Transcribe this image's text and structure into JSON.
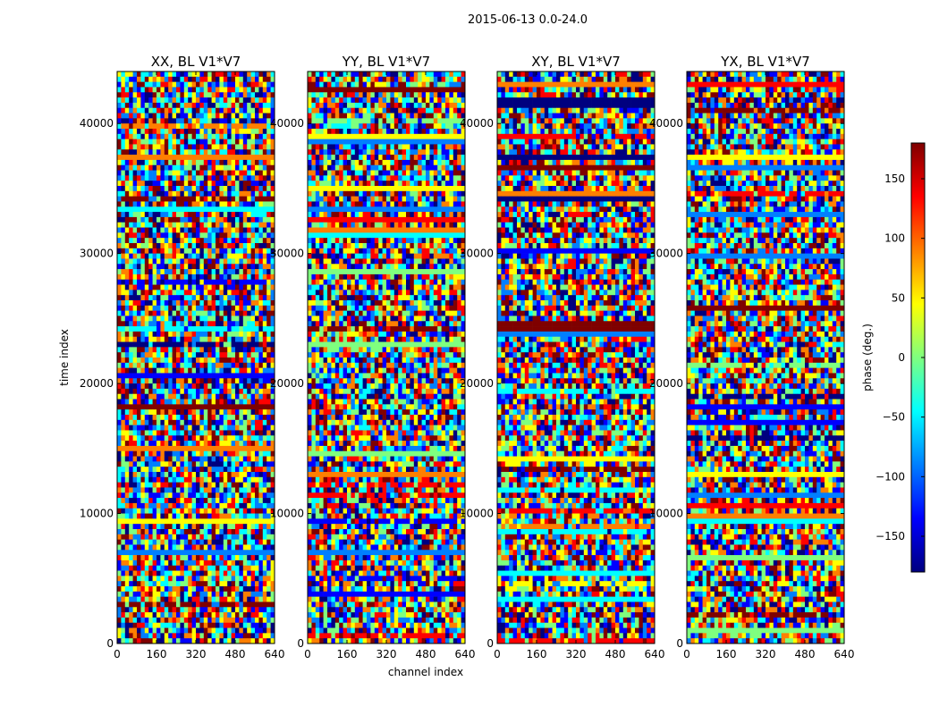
{
  "figure": {
    "suptitle": "2015-06-13 0.0-24.0",
    "xlabel": "channel index",
    "ylabel": "time index"
  },
  "chart_data": {
    "type": "heatmap",
    "colormap": "jet",
    "x_range": [
      0,
      640
    ],
    "y_range": [
      0,
      44000
    ],
    "x_ticks": [
      0,
      160,
      320,
      480,
      640
    ],
    "x_tick_labels": [
      "0",
      "160",
      "320",
      "480",
      "640"
    ],
    "y_ticks": [
      0,
      10000,
      20000,
      30000,
      40000
    ],
    "y_tick_labels": [
      "0",
      "10000",
      "20000",
      "30000",
      "40000"
    ],
    "panels": [
      {
        "id": "xx",
        "title": "XX, BL V1*V7"
      },
      {
        "id": "yy",
        "title": "YY, BL V1*V7"
      },
      {
        "id": "xy",
        "title": "XY, BL V1*V7"
      },
      {
        "id": "yx",
        "title": "YX, BL V1*V7"
      }
    ],
    "colorbar": {
      "label": "phase (deg.)",
      "range": [
        -180,
        180
      ],
      "ticks": [
        150,
        100,
        50,
        0,
        -50,
        -100,
        -150
      ],
      "tick_labels": [
        "150",
        "100",
        "50",
        "0",
        "−50",
        "−100",
        "−150"
      ]
    }
  },
  "colors": {
    "jet": [
      "#00007f",
      "#0000ff",
      "#007fff",
      "#00ffff",
      "#7fff7f",
      "#ffff00",
      "#ff7f00",
      "#ff0000",
      "#7f0000"
    ]
  }
}
